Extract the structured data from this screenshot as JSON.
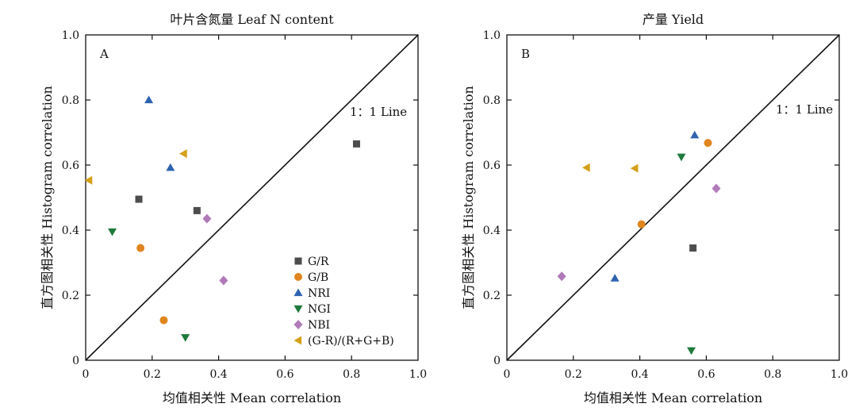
{
  "colors": {
    "G/R": "#4d4d4d",
    "G/B": "#e0851f",
    "NRI": "#2f63b0",
    "NGI": "#1f7a3c",
    "NBI": "#b07ab8",
    "(G-R)/(R+G+B)": "#d4a017"
  },
  "markers": {
    "G/R": "square",
    "G/B": "circle",
    "NRI": "triangle-up",
    "NGI": "triangle-down",
    "NBI": "diamond",
    "(G-R)/(R+G+B)": "triangle-left"
  },
  "legend": {
    "placement": "bottom-right of panel A",
    "items": [
      "G/R",
      "G/B",
      "NRI",
      "NGI",
      "NBI",
      "(G-R)/(R+G+B)"
    ]
  },
  "chart_data": [
    {
      "type": "scatter",
      "panel": "A",
      "title": "叶片含氮量 Leaf N content",
      "xlabel": "均值相关性 Mean correlation",
      "ylabel": "直方图相关性 Histogram correlation",
      "xlim": [
        0,
        1.0
      ],
      "ylim": [
        0,
        1.0
      ],
      "xticks": [
        "0",
        "0.2",
        "0.4",
        "0.6",
        "0.8",
        "1.0"
      ],
      "yticks": [
        "0",
        "0.2",
        "0.4",
        "0.6",
        "0.8",
        "1.0"
      ],
      "reference_line": {
        "label": "1：1 Line",
        "from": [
          0,
          0
        ],
        "to": [
          1,
          1
        ]
      },
      "series": [
        {
          "name": "G/R",
          "points": [
            [
              0.16,
              0.495
            ],
            [
              0.335,
              0.46
            ],
            [
              0.815,
              0.665
            ]
          ]
        },
        {
          "name": "G/B",
          "points": [
            [
              0.165,
              0.345
            ],
            [
              0.235,
              0.123
            ]
          ]
        },
        {
          "name": "NRI",
          "points": [
            [
              0.19,
              0.8
            ],
            [
              0.255,
              0.592
            ]
          ]
        },
        {
          "name": "NGI",
          "points": [
            [
              0.08,
              0.395
            ],
            [
              0.3,
              0.07
            ]
          ]
        },
        {
          "name": "NBI",
          "points": [
            [
              0.365,
              0.435
            ],
            [
              0.415,
              0.245
            ]
          ]
        },
        {
          "name": "(G-R)/(R+G+B)",
          "points": [
            [
              0.01,
              0.553
            ],
            [
              0.295,
              0.635
            ]
          ]
        }
      ]
    },
    {
      "type": "scatter",
      "panel": "B",
      "title": "产量 Yield",
      "xlabel": "均值相关性 Mean correlation",
      "ylabel": "直方图相关性 Histogram correlation",
      "xlim": [
        0,
        1.0
      ],
      "ylim": [
        0,
        1.0
      ],
      "xticks": [
        "0",
        "0.2",
        "0.4",
        "0.6",
        "0.8",
        "1.0"
      ],
      "yticks": [
        "0",
        "0.2",
        "0.4",
        "0.6",
        "0.8",
        "1.0"
      ],
      "reference_line": {
        "label": "1：1 Line",
        "from": [
          0,
          0
        ],
        "to": [
          1,
          1
        ]
      },
      "series": [
        {
          "name": "G/R",
          "points": [
            [
              0.56,
              0.345
            ]
          ]
        },
        {
          "name": "G/B",
          "points": [
            [
              0.405,
              0.418
            ],
            [
              0.605,
              0.668
            ]
          ]
        },
        {
          "name": "NRI",
          "points": [
            [
              0.325,
              0.252
            ],
            [
              0.565,
              0.692
            ]
          ]
        },
        {
          "name": "NGI",
          "points": [
            [
              0.525,
              0.625
            ],
            [
              0.555,
              0.03
            ]
          ]
        },
        {
          "name": "NBI",
          "points": [
            [
              0.165,
              0.258
            ],
            [
              0.63,
              0.528
            ]
          ]
        },
        {
          "name": "(G-R)/(R+G+B)",
          "points": [
            [
              0.24,
              0.592
            ],
            [
              0.385,
              0.59
            ]
          ]
        }
      ]
    }
  ]
}
